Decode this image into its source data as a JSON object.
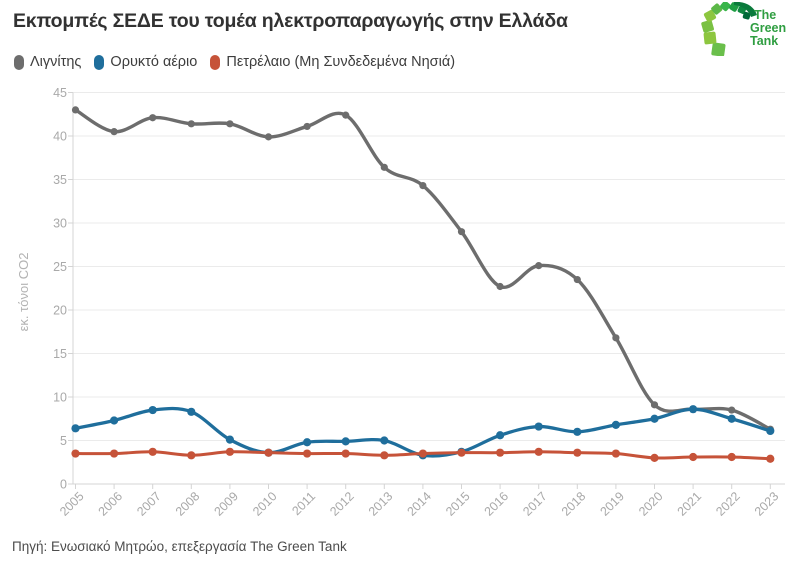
{
  "header": {
    "logo": {
      "line1": "The",
      "line2": "Green",
      "line3": "Tank"
    }
  },
  "chart_data": {
    "type": "line",
    "title": "Εκπομπές ΣΕΔΕ του τομέα ηλεκτροπαραγωγής στην Ελλάδα",
    "xlabel": "",
    "ylabel": "εκ. τόνοι CO2",
    "x": [
      2005,
      2006,
      2007,
      2008,
      2009,
      2010,
      2011,
      2012,
      2013,
      2014,
      2015,
      2016,
      2017,
      2018,
      2019,
      2020,
      2021,
      2022,
      2023
    ],
    "ylim": [
      0,
      45
    ],
    "ytick_step": 5,
    "grid": "horizontal",
    "legend_position": "top-left",
    "series": [
      {
        "name": "Λιγνίτης",
        "color": "#6d6d6d",
        "values": [
          43.0,
          40.5,
          42.1,
          41.4,
          41.4,
          39.9,
          41.1,
          42.4,
          36.4,
          34.3,
          29.0,
          22.7,
          25.1,
          23.5,
          16.8,
          9.1,
          8.6,
          8.5,
          6.3
        ]
      },
      {
        "name": "Ορυκτό αέριο",
        "color": "#1f6e9c",
        "values": [
          6.4,
          7.3,
          8.5,
          8.3,
          5.1,
          3.6,
          4.8,
          4.9,
          5.0,
          3.3,
          3.7,
          5.6,
          6.6,
          6.0,
          6.8,
          7.5,
          8.6,
          7.5,
          6.1
        ]
      },
      {
        "name": "Πετρέλαιο (Μη Συνδεδεμένα Νησιά)",
        "color": "#c65339",
        "values": [
          3.5,
          3.5,
          3.7,
          3.3,
          3.7,
          3.6,
          3.5,
          3.5,
          3.3,
          3.5,
          3.6,
          3.6,
          3.7,
          3.6,
          3.5,
          3.0,
          3.1,
          3.1,
          2.9
        ]
      }
    ]
  },
  "footer": {
    "source": "Πηγή: Ενωσιακό Μητρώο, επεξεργασία The Green Tank"
  }
}
